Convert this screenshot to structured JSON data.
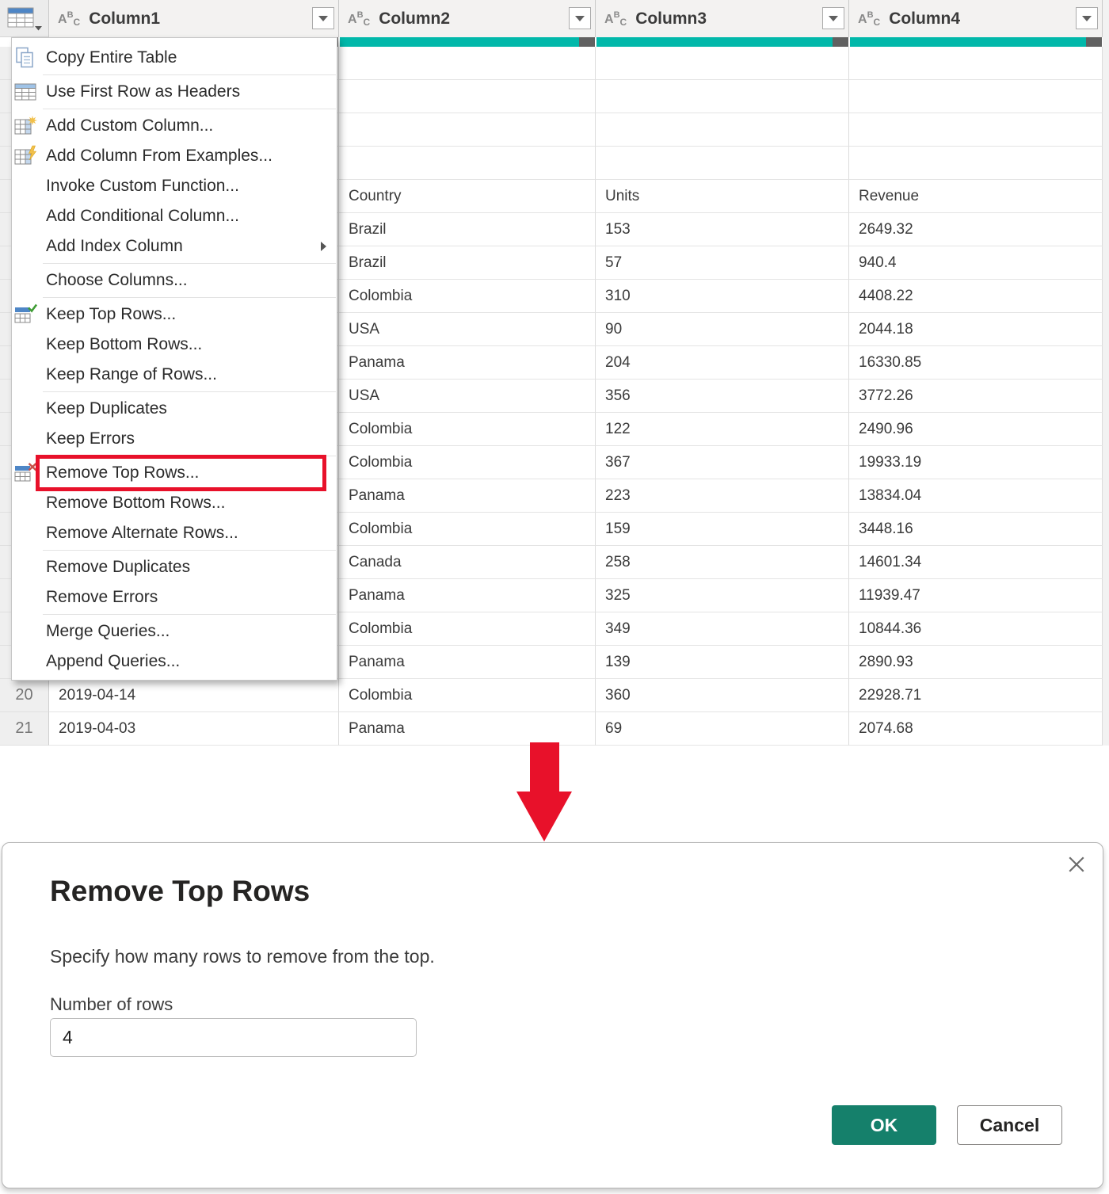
{
  "colors": {
    "accent_teal": "#01b8aa",
    "quality_empty": "#616161",
    "highlight_red": "#e8112a",
    "ok_green": "#15806b"
  },
  "table": {
    "corner_button_icon": "table-grid-icon",
    "columns": [
      {
        "name": "Column1",
        "type_icon": "abc-text-type-icon"
      },
      {
        "name": "Column2",
        "type_icon": "abc-text-type-icon"
      },
      {
        "name": "Column3",
        "type_icon": "abc-text-type-icon"
      },
      {
        "name": "Column4",
        "type_icon": "abc-text-type-icon"
      }
    ],
    "rows": [
      {
        "num": "",
        "c1": "",
        "c2": "",
        "c3": "",
        "c4": ""
      },
      {
        "num": "",
        "c1": "",
        "c2": "",
        "c3": "",
        "c4": ""
      },
      {
        "num": "",
        "c1": "",
        "c2": "",
        "c3": "",
        "c4": ""
      },
      {
        "num": "",
        "c1": "",
        "c2": "",
        "c3": "",
        "c4": ""
      },
      {
        "num": "",
        "c1": "",
        "c2": "Country",
        "c3": "Units",
        "c4": "Revenue"
      },
      {
        "num": "",
        "c1": "",
        "c2": "Brazil",
        "c3": "153",
        "c4": "2649.32"
      },
      {
        "num": "",
        "c1": "",
        "c2": "Brazil",
        "c3": "57",
        "c4": "940.4"
      },
      {
        "num": "",
        "c1": "",
        "c2": "Colombia",
        "c3": "310",
        "c4": "4408.22"
      },
      {
        "num": "",
        "c1": "",
        "c2": "USA",
        "c3": "90",
        "c4": "2044.18"
      },
      {
        "num": "",
        "c1": "",
        "c2": "Panama",
        "c3": "204",
        "c4": "16330.85"
      },
      {
        "num": "",
        "c1": "",
        "c2": "USA",
        "c3": "356",
        "c4": "3772.26"
      },
      {
        "num": "",
        "c1": "",
        "c2": "Colombia",
        "c3": "122",
        "c4": "2490.96"
      },
      {
        "num": "",
        "c1": "",
        "c2": "Colombia",
        "c3": "367",
        "c4": "19933.19"
      },
      {
        "num": "",
        "c1": "",
        "c2": "Panama",
        "c3": "223",
        "c4": "13834.04"
      },
      {
        "num": "",
        "c1": "",
        "c2": "Colombia",
        "c3": "159",
        "c4": "3448.16"
      },
      {
        "num": "",
        "c1": "",
        "c2": "Canada",
        "c3": "258",
        "c4": "14601.34"
      },
      {
        "num": "",
        "c1": "",
        "c2": "Panama",
        "c3": "325",
        "c4": "11939.47"
      },
      {
        "num": "",
        "c1": "",
        "c2": "Colombia",
        "c3": "349",
        "c4": "10844.36"
      },
      {
        "num": "",
        "c1": "",
        "c2": "Panama",
        "c3": "139",
        "c4": "2890.93"
      },
      {
        "num": "20",
        "c1": "2019-04-14",
        "c2": "Colombia",
        "c3": "360",
        "c4": "22928.71"
      },
      {
        "num": "21",
        "c1": "2019-04-03",
        "c2": "Panama",
        "c3": "69",
        "c4": "2074.68"
      }
    ]
  },
  "menu": {
    "items": [
      {
        "label": "Copy Entire Table",
        "icon": "copy-icon",
        "separator_after": true
      },
      {
        "label": "Use First Row as Headers",
        "icon": "table-header-icon",
        "separator_after": true
      },
      {
        "label": "Add Custom Column...",
        "icon": "add-custom-column-icon"
      },
      {
        "label": "Add Column From Examples...",
        "icon": "add-column-examples-icon"
      },
      {
        "label": "Invoke Custom Function..."
      },
      {
        "label": "Add Conditional Column..."
      },
      {
        "label": "Add Index Column",
        "submenu": true,
        "separator_after": true
      },
      {
        "label": "Choose Columns...",
        "separator_after": true
      },
      {
        "label": "Keep Top Rows...",
        "icon": "keep-top-rows-icon"
      },
      {
        "label": "Keep Bottom Rows..."
      },
      {
        "label": "Keep Range of Rows...",
        "separator_after": true
      },
      {
        "label": "Keep Duplicates"
      },
      {
        "label": "Keep Errors",
        "separator_after": true
      },
      {
        "label": "Remove Top Rows...",
        "icon": "remove-top-rows-icon",
        "highlighted": true
      },
      {
        "label": "Remove Bottom Rows..."
      },
      {
        "label": "Remove Alternate Rows...",
        "separator_after": true
      },
      {
        "label": "Remove Duplicates"
      },
      {
        "label": "Remove Errors",
        "separator_after": true
      },
      {
        "label": "Merge Queries..."
      },
      {
        "label": "Append Queries..."
      }
    ]
  },
  "annotation": {
    "arrow": "red-down-arrow"
  },
  "dialog": {
    "title": "Remove Top Rows",
    "description": "Specify how many rows to remove from the top.",
    "input_label": "Number of rows",
    "input_value": "4",
    "ok_label": "OK",
    "cancel_label": "Cancel"
  }
}
